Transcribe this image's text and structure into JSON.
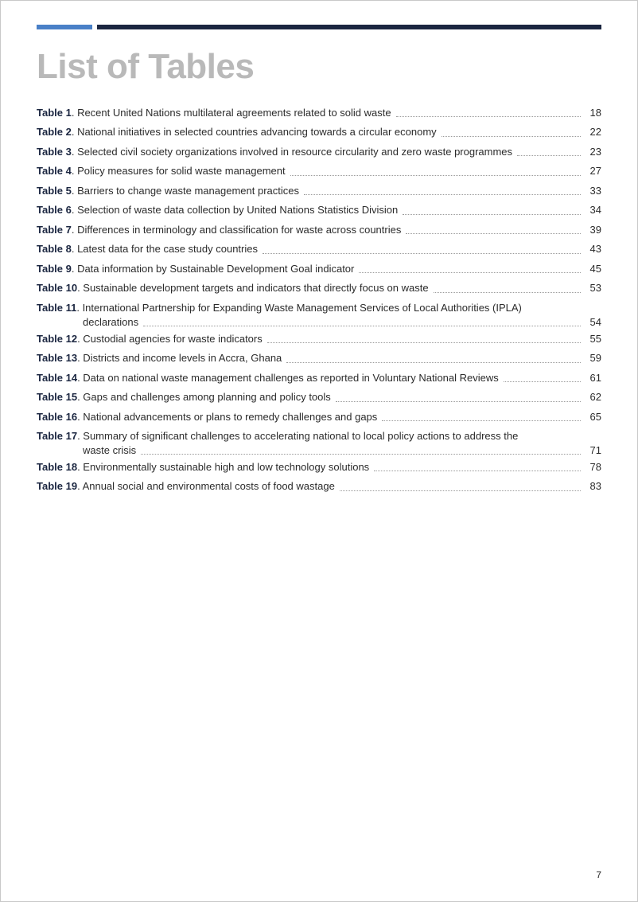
{
  "colors": {
    "accent_light": "#4a80c7",
    "accent_dark": "#1b2640",
    "title_grey": "#b9b9b9",
    "text": "#2b2b2b",
    "leader": "#9a9a9a",
    "page_bg": "#ffffff",
    "border": "#c9c9c9"
  },
  "title": "List of Tables",
  "page_number": "7",
  "entries": [
    {
      "label": "Table 1",
      "desc": ". Recent United Nations multilateral agreements related to solid waste",
      "page": "18"
    },
    {
      "label": "Table 2",
      "desc": ". National initiatives in selected countries advancing towards a circular economy",
      "page": "22"
    },
    {
      "label": "Table 3",
      "desc": ". Selected civil society organizations involved in resource circularity and zero waste programmes",
      "page": "23"
    },
    {
      "label": "Table 4",
      "desc": ". Policy measures for solid waste management",
      "page": "27"
    },
    {
      "label": "Table 5",
      "desc": ". Barriers to change waste management practices",
      "page": "33"
    },
    {
      "label": "Table 6",
      "desc": ". Selection of waste data collection by United Nations Statistics Division",
      "page": "34"
    },
    {
      "label": "Table 7",
      "desc": ". Differences in terminology and classification for waste across countries",
      "page": "39"
    },
    {
      "label": "Table 8",
      "desc": ". Latest data for the case study countries",
      "page": "43"
    },
    {
      "label": "Table 9",
      "desc": ". Data information by Sustainable Development Goal indicator",
      "page": "45"
    },
    {
      "label": "Table 10",
      "desc": ". Sustainable development targets and indicators that directly focus on waste",
      "page": "53"
    },
    {
      "label": "Table 11",
      "desc": ". International Partnership for Expanding Waste Management Services of Local Authorities (IPLA)",
      "cont": "declarations",
      "page": "54"
    },
    {
      "label": "Table 12",
      "desc": ". Custodial agencies for waste indicators",
      "page": "55"
    },
    {
      "label": "Table 13",
      "desc": ". Districts and income levels in Accra, Ghana",
      "page": "59"
    },
    {
      "label": "Table 14",
      "desc": ". Data on national waste management challenges as reported in Voluntary National Reviews",
      "page": "61"
    },
    {
      "label": "Table 15",
      "desc": ". Gaps and challenges among planning and policy tools",
      "page": "62"
    },
    {
      "label": "Table 16",
      "desc": ". National advancements or plans to remedy challenges and gaps",
      "page": "65"
    },
    {
      "label": "Table 17",
      "desc": ". Summary of significant challenges to accelerating national to local policy actions to address the",
      "cont": "waste crisis",
      "page": "71"
    },
    {
      "label": "Table 18",
      "desc": ". Environmentally sustainable high and low technology solutions",
      "page": "78"
    },
    {
      "label": "Table 19",
      "desc": ". Annual social and environmental costs of food wastage",
      "page": "83"
    }
  ]
}
